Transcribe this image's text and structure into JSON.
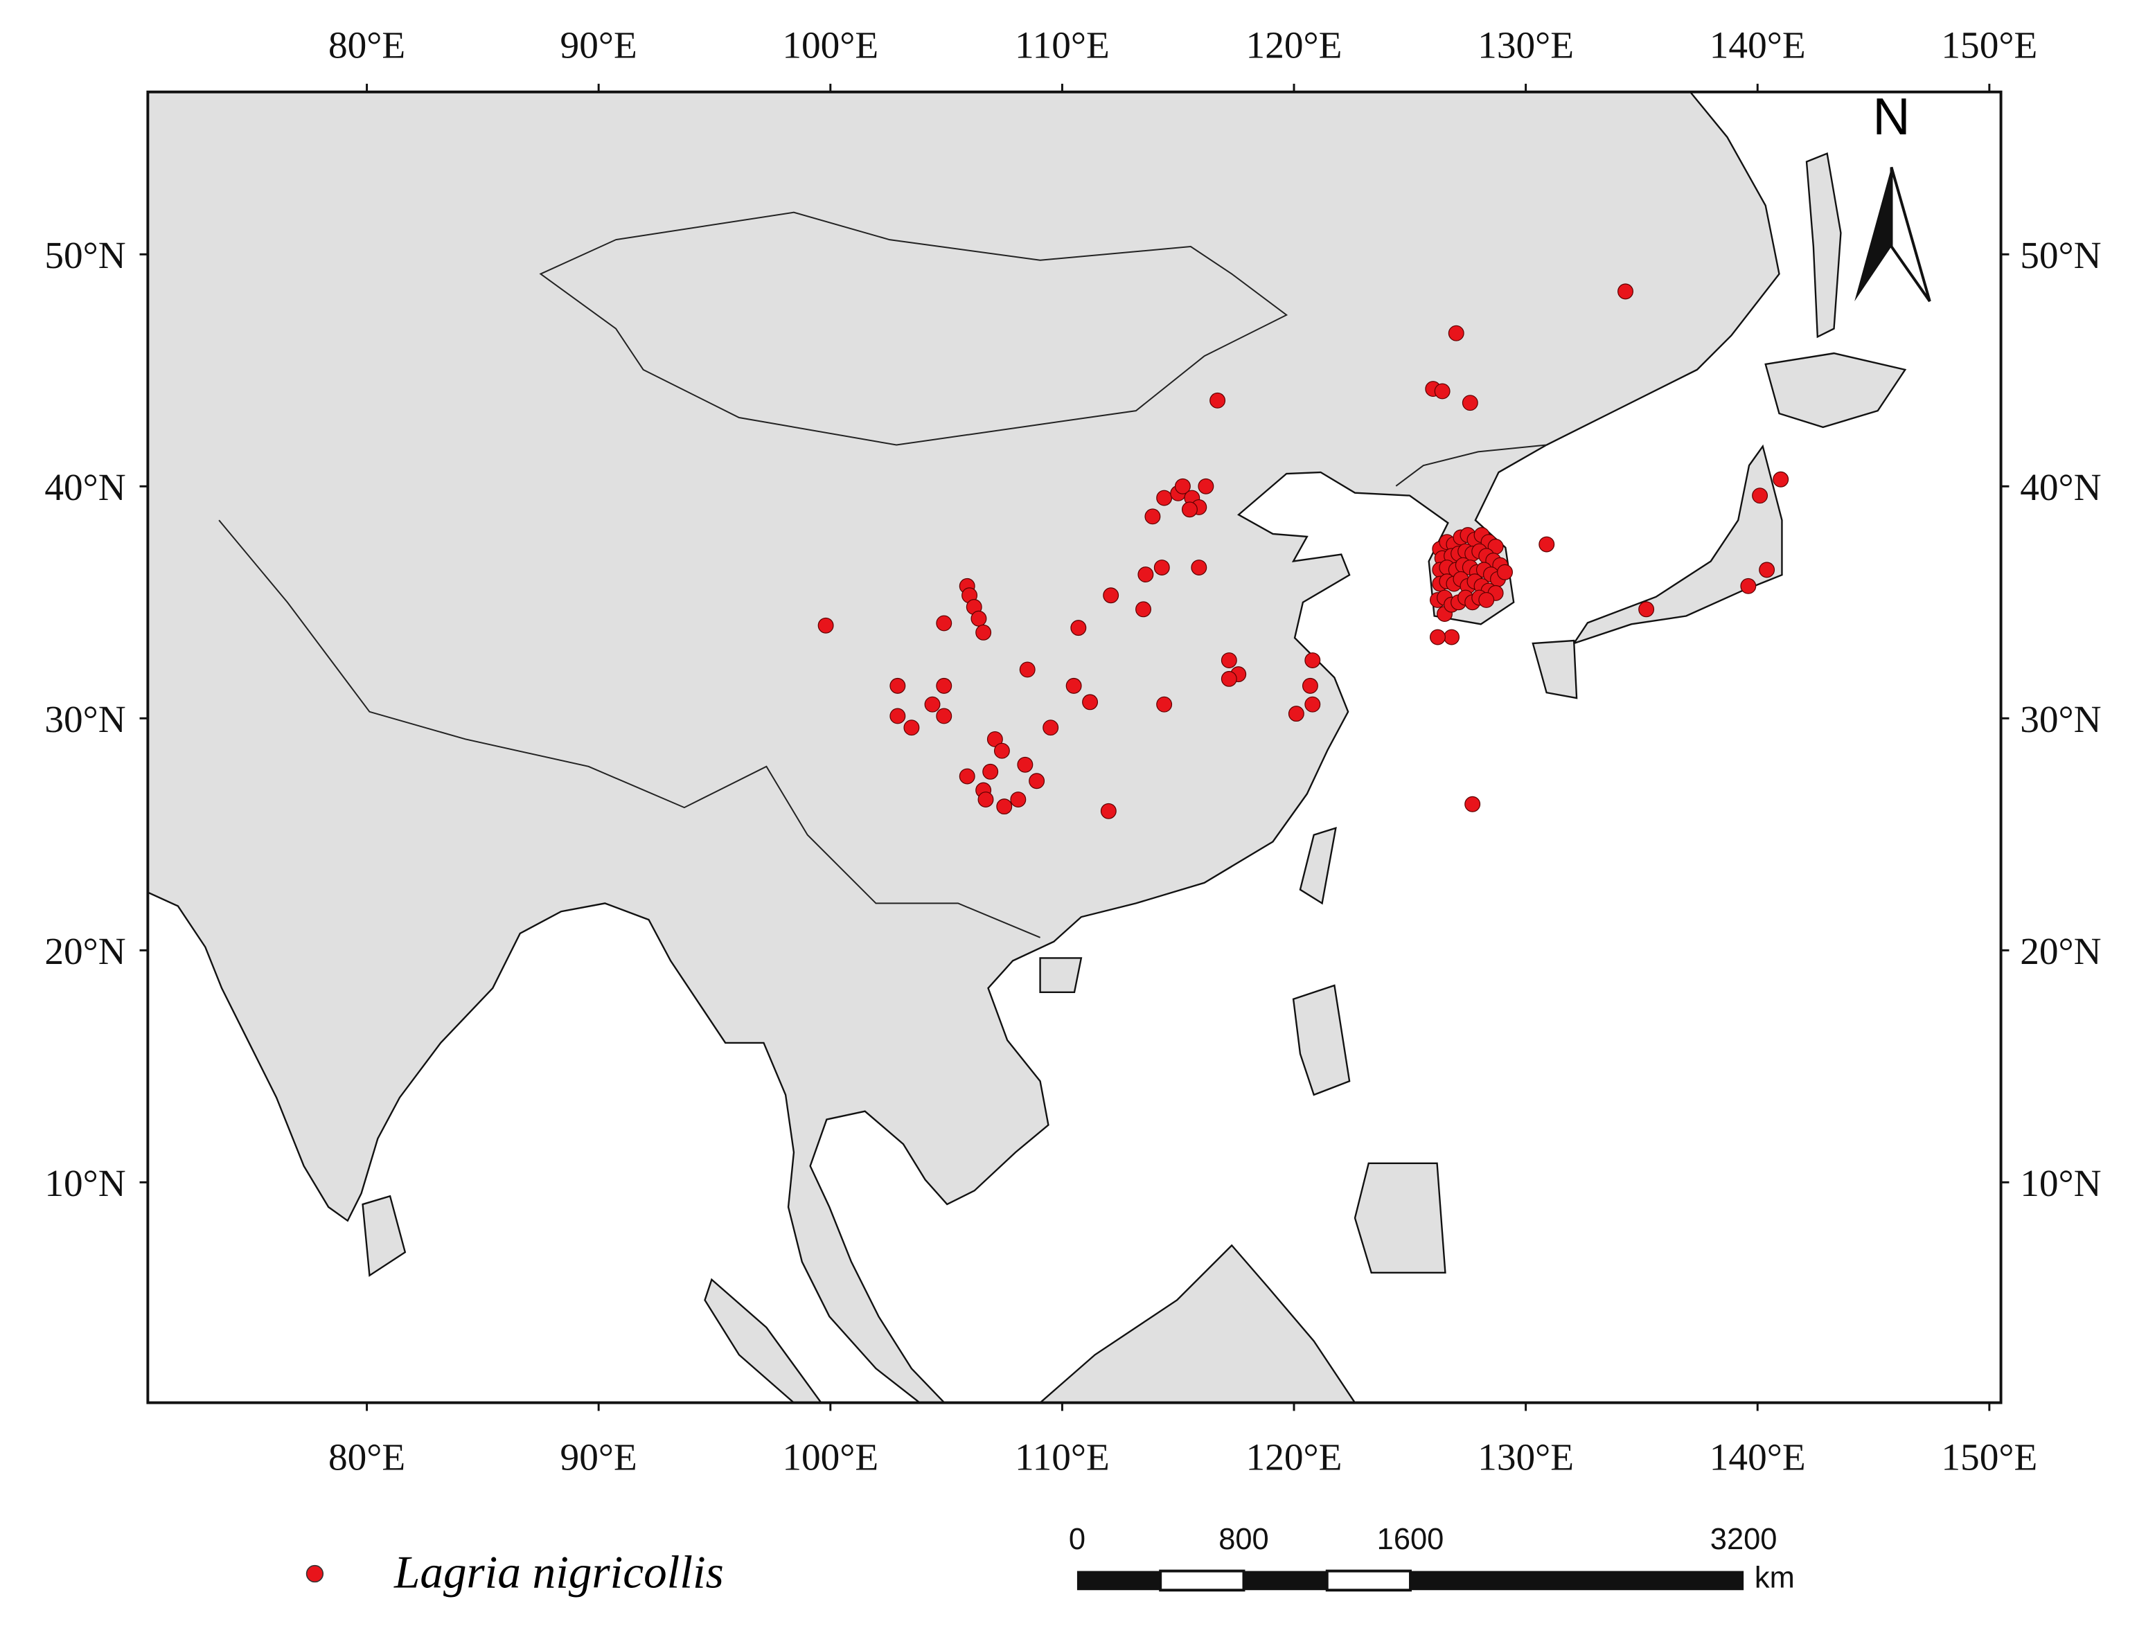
{
  "map": {
    "xlim": [
      70.55,
      150.5
    ],
    "ylim": [
      0.5,
      57
    ],
    "xticks": [
      {
        "value": 80,
        "label": "80°E"
      },
      {
        "value": 90,
        "label": "90°E"
      },
      {
        "value": 100,
        "label": "100°E"
      },
      {
        "value": 110,
        "label": "110°E"
      },
      {
        "value": 120,
        "label": "120°E"
      },
      {
        "value": 130,
        "label": "130°E"
      },
      {
        "value": 140,
        "label": "140°E"
      },
      {
        "value": 150,
        "label": "150°E"
      }
    ],
    "yticks": [
      {
        "value": 10,
        "label": "10°N"
      },
      {
        "value": 20,
        "label": "20°N"
      },
      {
        "value": 30,
        "label": "30°N"
      },
      {
        "value": 40,
        "label": "40°N"
      },
      {
        "value": 50,
        "label": "50°N"
      }
    ],
    "points": {
      "name": "Lagria nigricollis",
      "color": "#e8141b",
      "lon": [
        134.3,
        127.0,
        126.0,
        126.4,
        127.6,
        116.7,
        130.9,
        140.1,
        141.0,
        140.4,
        139.6,
        135.2,
        127.7,
        99.8,
        104.9,
        105.9,
        106.0,
        106.2,
        106.4,
        106.6,
        102.9,
        102.9,
        103.5,
        104.4,
        104.9,
        104.9,
        108.5,
        110.5,
        111.2,
        110.7,
        112.1,
        113.5,
        113.6,
        114.3,
        115.9,
        113.9,
        114.4,
        115.0,
        115.2,
        115.6,
        116.2,
        115.9,
        115.5,
        114.4,
        117.2,
        117.6,
        117.2,
        120.8,
        120.7,
        120.8,
        120.1,
        107.1,
        107.4,
        109.5,
        108.4,
        108.9,
        105.9,
        106.9,
        106.6,
        106.7,
        107.5,
        108.1,
        112.0,
        126.5,
        126.8,
        126.2,
        126.3,
        126.6,
        126.9,
        127.2,
        127.5,
        127.8,
        128.1,
        128.4,
        128.7,
        126.4,
        126.8,
        127.1,
        127.4,
        127.7,
        128.0,
        128.3,
        128.6,
        128.9,
        126.3,
        126.6,
        127.0,
        127.3,
        127.6,
        127.9,
        128.2,
        128.5,
        128.8,
        129.1,
        126.3,
        126.6,
        126.9,
        127.2,
        127.5,
        127.8,
        128.1,
        128.4,
        128.7,
        126.2,
        126.5,
        126.8,
        127.1,
        127.4,
        127.7,
        128.0,
        128.3
      ],
      "lat": [
        48.4,
        46.6,
        44.2,
        44.1,
        43.6,
        43.7,
        37.5,
        39.6,
        40.3,
        36.4,
        35.7,
        34.7,
        26.3,
        34.0,
        34.1,
        35.7,
        35.3,
        34.8,
        34.3,
        33.7,
        31.4,
        30.1,
        29.6,
        30.6,
        31.4,
        30.1,
        32.1,
        31.4,
        30.7,
        33.9,
        35.3,
        34.7,
        36.2,
        36.5,
        36.5,
        38.7,
        39.5,
        39.7,
        40.0,
        39.5,
        40.0,
        39.1,
        39.0,
        30.6,
        32.5,
        31.9,
        31.7,
        32.5,
        31.4,
        30.6,
        30.2,
        29.1,
        28.6,
        29.6,
        28.0,
        27.3,
        27.5,
        27.7,
        26.9,
        26.5,
        26.2,
        26.5,
        26.0,
        34.5,
        33.5,
        33.5,
        37.3,
        37.6,
        37.5,
        37.8,
        37.9,
        37.7,
        37.9,
        37.6,
        37.4,
        36.9,
        37.0,
        37.1,
        37.2,
        37.1,
        37.2,
        37.0,
        36.8,
        36.6,
        36.4,
        36.5,
        36.4,
        36.6,
        36.5,
        36.3,
        36.4,
        36.2,
        36.0,
        36.3,
        35.8,
        35.9,
        35.8,
        36.0,
        35.7,
        35.9,
        35.7,
        35.5,
        35.4,
        35.1,
        35.2,
        34.9,
        35.0,
        35.2,
        35.0,
        35.2,
        35.1
      ]
    }
  },
  "scale_bar": {
    "ticks": [
      0,
      800,
      1600,
      3200
    ],
    "unit": "km"
  },
  "north": "N"
}
